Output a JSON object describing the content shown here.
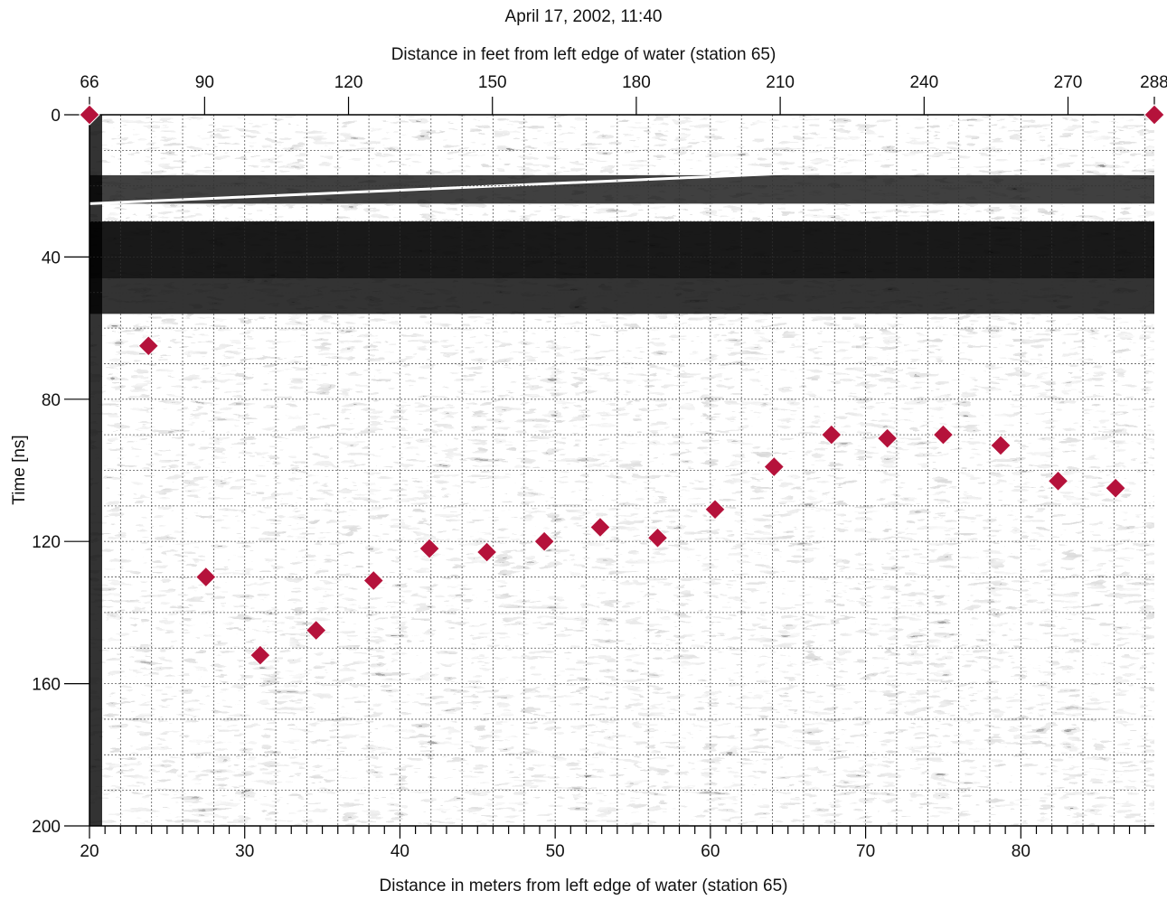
{
  "chart_data": {
    "type": "scatter",
    "title": "April 17, 2002, 11:40",
    "xlabel": "Distance in meters from left edge of water (station 65)",
    "x2label": "Distance in feet from left edge of water (station 65)",
    "ylabel": "Time [ns]",
    "xlim": [
      20,
      88.6
    ],
    "ylim": [
      200,
      0
    ],
    "x_ticks": [
      20,
      30,
      40,
      50,
      60,
      70,
      80
    ],
    "x2_ticks": [
      66,
      90,
      120,
      150,
      180,
      210,
      240,
      270,
      288
    ],
    "y_ticks": [
      0,
      40,
      80,
      120,
      160,
      200
    ],
    "grid": true,
    "background": "ground-penetrating radar reflection profile (grayscale)",
    "marker": {
      "shape": "diamond",
      "color": "#b5123b"
    },
    "series": [
      {
        "points": [
          {
            "x": 20.0,
            "y": 0
          },
          {
            "x": 23.8,
            "y": 65
          },
          {
            "x": 27.5,
            "y": 130
          },
          {
            "x": 31.0,
            "y": 152
          },
          {
            "x": 34.6,
            "y": 145
          },
          {
            "x": 38.3,
            "y": 131
          },
          {
            "x": 41.9,
            "y": 122
          },
          {
            "x": 45.6,
            "y": 123
          },
          {
            "x": 49.3,
            "y": 120
          },
          {
            "x": 52.9,
            "y": 116
          },
          {
            "x": 56.6,
            "y": 119
          },
          {
            "x": 60.3,
            "y": 111
          },
          {
            "x": 64.1,
            "y": 99
          },
          {
            "x": 67.8,
            "y": 90
          },
          {
            "x": 71.4,
            "y": 91
          },
          {
            "x": 75.0,
            "y": 90
          },
          {
            "x": 78.7,
            "y": 93
          },
          {
            "x": 82.4,
            "y": 103
          },
          {
            "x": 86.1,
            "y": 105
          },
          {
            "x": 88.6,
            "y": 0
          }
        ]
      }
    ]
  }
}
